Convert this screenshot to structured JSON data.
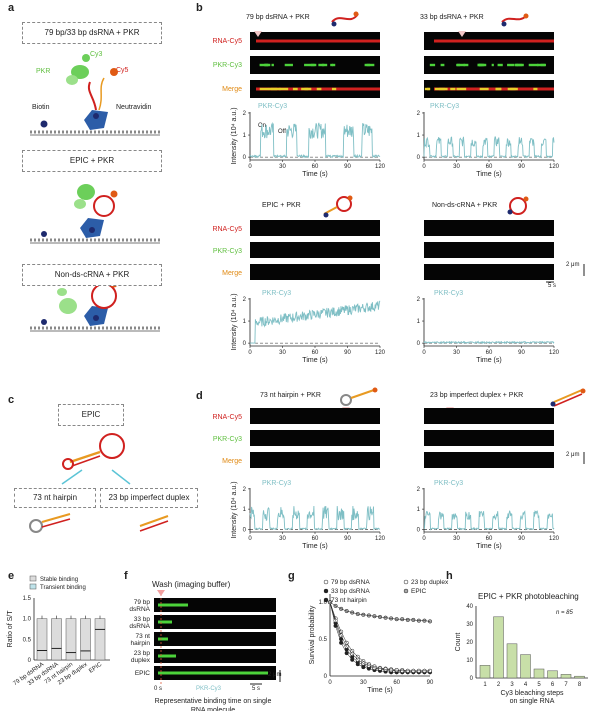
{
  "panel_labels": {
    "a": "a",
    "b": "b",
    "c": "c",
    "d": "d",
    "e": "e",
    "f": "f",
    "g": "g",
    "h": "h"
  },
  "panel_a": {
    "box1": "79 bp/33 bp dsRNA + PKR",
    "box2": "EPIC + PKR",
    "box3": "Non-ds-cRNA + PKR",
    "lbl_pkr": "PKR",
    "lbl_cy3": "Cy3",
    "lbl_cy5": "Cy5",
    "lbl_biotin": "Biotin",
    "lbl_neutravidin": "Neutravidin"
  },
  "panel_b": {
    "title_79": "79 bp dsRNA + PKR",
    "title_33": "33 bp dsRNA + PKR",
    "title_epic": "EPIC + PKR",
    "title_nonds": "Non-ds-cRNA + PKR",
    "row_cy5": "RNA-Cy5",
    "row_cy3": "PKR-Cy3",
    "row_merge": "Merge",
    "trace_label": "PKR-Cy3",
    "ylabel": "Intensity (10⁴ a.u.)",
    "xlabel": "Time (s)",
    "on": "On",
    "off": "Off",
    "scale_um": "2 μm",
    "scale_s": "5 s",
    "yticks": [
      "0",
      "1",
      "2"
    ],
    "xticks": [
      "0",
      "30",
      "60",
      "90",
      "120"
    ]
  },
  "panel_c": {
    "box_epic": "EPIC",
    "box_hairpin": "73 nt hairpin",
    "box_duplex": "23 bp imperfect duplex"
  },
  "panel_d": {
    "title_hairpin": "73 nt hairpin + PKR",
    "title_duplex": "23 bp imperfect duplex + PKR",
    "row_cy5": "RNA-Cy5",
    "row_cy3": "PKR-Cy3",
    "row_merge": "Merge",
    "trace_label": "PKR-Cy3",
    "ylabel": "Intensity (10⁴ a.u.)",
    "xlabel": "Time (s)",
    "scale_um": "2 μm",
    "yticks": [
      "0",
      "1",
      "2"
    ],
    "xticks": [
      "0",
      "30",
      "60",
      "90",
      "120"
    ]
  },
  "panel_e": {
    "legend_stable": "Stable binding",
    "legend_transient": "Transient binding",
    "ylabel": "Ratio of S/T",
    "yticks": [
      "0",
      "0.5",
      "1.0",
      "1.5"
    ],
    "categories": [
      "79 bp dsRNA",
      "33 bp dsRNA",
      "73 nt hairpin",
      "23 bp duplex",
      "EPIC"
    ]
  },
  "panel_f": {
    "title": "Wash (imaging buffer)",
    "rows": [
      "79 bp dsRNA",
      "33 bp dsRNA",
      "73 nt hairpin",
      "23 bp duplex",
      "EPIC"
    ],
    "x0": "0 s",
    "channel": "PKR-Cy3",
    "scale_s": "5 s",
    "scale_um": "2 μm",
    "caption": "Representative binding time on single RNA molecule"
  },
  "panel_g": {
    "legend": [
      "79 bp dsRNA",
      "33 bp dsRNA",
      "73 nt hairpin",
      "23 bp duplex",
      "EPIC"
    ],
    "ylabel": "Survival probability",
    "xlabel": "Time (s)",
    "yticks": [
      "0",
      "0.5",
      "1.0"
    ],
    "xticks": [
      "0",
      "30",
      "60",
      "90"
    ]
  },
  "panel_h": {
    "title": "EPIC + PKR photobleaching",
    "n_label": "n = 85",
    "ylabel": "Count",
    "xlabel": "Cy3 bleaching steps on single RNA",
    "yticks": [
      "0",
      "10",
      "20",
      "30",
      "40"
    ]
  },
  "chart_data": [
    {
      "type": "bar",
      "panel": "e",
      "ylabel": "Ratio of S/T",
      "ylim": [
        0,
        1.5
      ],
      "categories": [
        "79 bp dsRNA",
        "33 bp dsRNA",
        "73 nt hairpin",
        "23 bp duplex",
        "EPIC"
      ],
      "series": [
        {
          "name": "Stable binding",
          "values": [
            0.23,
            0.28,
            0.18,
            0.22,
            0.74
          ]
        },
        {
          "name": "Transient binding",
          "values": [
            1.0,
            1.0,
            1.0,
            1.0,
            1.0
          ]
        }
      ]
    },
    {
      "type": "bar",
      "panel": "h",
      "title": "EPIC + PKR photobleaching",
      "xlabel": "Cy3 bleaching steps on single RNA",
      "ylabel": "Count",
      "ylim": [
        0,
        40
      ],
      "categories": [
        "1",
        "2",
        "3",
        "4",
        "5",
        "6",
        "7",
        "8"
      ],
      "values": [
        7,
        34,
        19,
        13,
        5,
        4,
        2,
        1
      ]
    },
    {
      "type": "scatter",
      "panel": "g",
      "xlabel": "Time (s)",
      "ylabel": "Survival probability",
      "xlim": [
        0,
        90
      ],
      "ylim": [
        0,
        1.0
      ],
      "x": [
        0,
        5,
        10,
        15,
        20,
        25,
        30,
        35,
        40,
        45,
        50,
        55,
        60,
        65,
        70,
        75,
        80,
        85,
        90
      ],
      "series": [
        {
          "name": "79 bp dsRNA",
          "values": [
            1.0,
            0.78,
            0.6,
            0.45,
            0.34,
            0.26,
            0.2,
            0.16,
            0.13,
            0.11,
            0.1,
            0.09,
            0.08,
            0.08,
            0.07,
            0.07,
            0.07,
            0.07,
            0.07
          ]
        },
        {
          "name": "33 bp dsRNA",
          "values": [
            1.0,
            0.72,
            0.5,
            0.36,
            0.26,
            0.19,
            0.15,
            0.12,
            0.1,
            0.09,
            0.08,
            0.07,
            0.07,
            0.06,
            0.06,
            0.06,
            0.06,
            0.06,
            0.06
          ]
        },
        {
          "name": "73 nt hairpin",
          "values": [
            1.0,
            0.68,
            0.45,
            0.31,
            0.22,
            0.16,
            0.12,
            0.1,
            0.08,
            0.07,
            0.06,
            0.05,
            0.05,
            0.05,
            0.05,
            0.05,
            0.05,
            0.05,
            0.05
          ]
        },
        {
          "name": "23 bp duplex",
          "values": [
            1.0,
            0.75,
            0.55,
            0.4,
            0.3,
            0.22,
            0.17,
            0.14,
            0.11,
            0.1,
            0.09,
            0.08,
            0.08,
            0.07,
            0.07,
            0.07,
            0.07,
            0.07,
            0.07
          ]
        },
        {
          "name": "EPIC",
          "values": [
            1.0,
            0.95,
            0.91,
            0.88,
            0.86,
            0.84,
            0.83,
            0.82,
            0.81,
            0.8,
            0.79,
            0.78,
            0.77,
            0.77,
            0.76,
            0.76,
            0.75,
            0.75,
            0.74
          ]
        }
      ]
    }
  ]
}
